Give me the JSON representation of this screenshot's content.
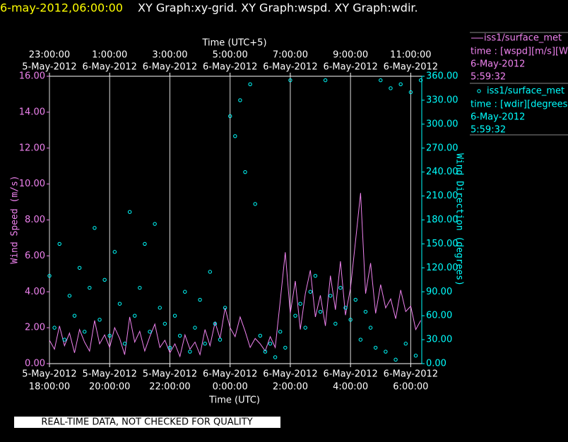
{
  "chart_data": {
    "type": "line",
    "title_date": "6-may-2012,06:00:00",
    "title": "XY Graph:xy-grid.  XY Graph:wspd.  XY Graph:wdir.",
    "x_label": "Time (UTC)",
    "x2_label": "Time (UTC+5)",
    "y_label": "Wind Speed (m/s)",
    "y2_label": "Wind Direction (degrees)",
    "notice": "REAL-TIME DATA, NOT CHECKED FOR QUALITY",
    "grid": true,
    "xlim": [
      "2012-05-05T18:00",
      "2012-05-06T06:22"
    ],
    "xticks": [
      {
        "value": "2012-05-05T18:00",
        "label": [
          "5-May-2012",
          "18:00:00"
        ]
      },
      {
        "value": "2012-05-05T20:00",
        "label": [
          "5-May-2012",
          "20:00:00"
        ]
      },
      {
        "value": "2012-05-05T22:00",
        "label": [
          "5-May-2012",
          "22:00:00"
        ]
      },
      {
        "value": "2012-05-06T00:00",
        "label": [
          "6-May-2012",
          "0:00:00"
        ]
      },
      {
        "value": "2012-05-06T02:00",
        "label": [
          "6-May-2012",
          "2:00:00"
        ]
      },
      {
        "value": "2012-05-06T04:00",
        "label": [
          "6-May-2012",
          "4:00:00"
        ]
      },
      {
        "value": "2012-05-06T06:00",
        "label": [
          "6-May-2012",
          "6:00:00"
        ]
      }
    ],
    "x2lim": [
      "2012-05-05T23:00",
      "2012-05-06T11:22"
    ],
    "x2ticks": [
      {
        "value": "2012-05-05T23:00",
        "label": [
          "23:00:00",
          "5-May-2012"
        ]
      },
      {
        "value": "2012-05-06T01:00",
        "label": [
          "1:00:00",
          "6-May-2012"
        ]
      },
      {
        "value": "2012-05-06T03:00",
        "label": [
          "3:00:00",
          "6-May-2012"
        ]
      },
      {
        "value": "2012-05-06T05:00",
        "label": [
          "5:00:00",
          "6-May-2012"
        ]
      },
      {
        "value": "2012-05-06T07:00",
        "label": [
          "7:00:00",
          "6-May-2012"
        ]
      },
      {
        "value": "2012-05-06T09:00",
        "label": [
          "9:00:00",
          "6-May-2012"
        ]
      },
      {
        "value": "2012-05-06T11:00",
        "label": [
          "11:00:00",
          "6-May-2012"
        ]
      }
    ],
    "ylim": [
      0,
      16
    ],
    "yticks": [
      {
        "value": 0,
        "label": "0.00"
      },
      {
        "value": 2,
        "label": "2.00"
      },
      {
        "value": 4,
        "label": "4.00"
      },
      {
        "value": 6,
        "label": "6.00"
      },
      {
        "value": 8,
        "label": "8.00"
      },
      {
        "value": 10,
        "label": "10.00"
      },
      {
        "value": 12,
        "label": "12.00"
      },
      {
        "value": 14,
        "label": "14.00"
      },
      {
        "value": 16,
        "label": "16.00"
      }
    ],
    "y2lim": [
      0,
      360
    ],
    "y2ticks": [
      {
        "value": 0,
        "label": "0.00"
      },
      {
        "value": 30,
        "label": "30.00"
      },
      {
        "value": 60,
        "label": "60.00"
      },
      {
        "value": 90,
        "label": "90.00"
      },
      {
        "value": 120,
        "label": "120.00"
      },
      {
        "value": 150,
        "label": "150.00"
      },
      {
        "value": 180,
        "label": "180.00"
      },
      {
        "value": 210,
        "label": "210.00"
      },
      {
        "value": 240,
        "label": "240.00"
      },
      {
        "value": 270,
        "label": "270.00"
      },
      {
        "value": 300,
        "label": "300.00"
      },
      {
        "value": 330,
        "label": "330.00"
      },
      {
        "value": 360,
        "label": "360.00"
      }
    ],
    "x": [
      "2012-05-05T18:00",
      "2012-05-05T18:10",
      "2012-05-05T18:20",
      "2012-05-05T18:30",
      "2012-05-05T18:40",
      "2012-05-05T18:50",
      "2012-05-05T19:00",
      "2012-05-05T19:10",
      "2012-05-05T19:20",
      "2012-05-05T19:30",
      "2012-05-05T19:40",
      "2012-05-05T19:50",
      "2012-05-05T20:00",
      "2012-05-05T20:10",
      "2012-05-05T20:20",
      "2012-05-05T20:30",
      "2012-05-05T20:40",
      "2012-05-05T20:50",
      "2012-05-05T21:00",
      "2012-05-05T21:10",
      "2012-05-05T21:20",
      "2012-05-05T21:30",
      "2012-05-05T21:40",
      "2012-05-05T21:50",
      "2012-05-05T22:00",
      "2012-05-05T22:10",
      "2012-05-05T22:20",
      "2012-05-05T22:30",
      "2012-05-05T22:40",
      "2012-05-05T22:50",
      "2012-05-05T23:00",
      "2012-05-05T23:10",
      "2012-05-05T23:20",
      "2012-05-05T23:30",
      "2012-05-05T23:40",
      "2012-05-05T23:50",
      "2012-05-06T00:00",
      "2012-05-06T00:10",
      "2012-05-06T00:20",
      "2012-05-06T00:30",
      "2012-05-06T00:40",
      "2012-05-06T00:50",
      "2012-05-06T01:00",
      "2012-05-06T01:10",
      "2012-05-06T01:20",
      "2012-05-06T01:30",
      "2012-05-06T01:40",
      "2012-05-06T01:50",
      "2012-05-06T02:00",
      "2012-05-06T02:10",
      "2012-05-06T02:20",
      "2012-05-06T02:30",
      "2012-05-06T02:40",
      "2012-05-06T02:50",
      "2012-05-06T03:00",
      "2012-05-06T03:10",
      "2012-05-06T03:20",
      "2012-05-06T03:30",
      "2012-05-06T03:40",
      "2012-05-06T03:50",
      "2012-05-06T04:00",
      "2012-05-06T04:10",
      "2012-05-06T04:20",
      "2012-05-06T04:30",
      "2012-05-06T04:40",
      "2012-05-06T04:50",
      "2012-05-06T05:00",
      "2012-05-06T05:10",
      "2012-05-06T05:20",
      "2012-05-06T05:30",
      "2012-05-06T05:40",
      "2012-05-06T05:50",
      "2012-05-06T06:00",
      "2012-05-06T06:10",
      "2012-05-06T06:20"
    ],
    "series": [
      {
        "name": "iss1/surface_met",
        "type": "line",
        "color": "#ee82ee",
        "legend_text": [
          "time : [wspd][m/s][Wind",
          "6-May-2012",
          "5:59:32"
        ],
        "values": [
          1.3,
          0.8,
          2.1,
          1.0,
          1.7,
          0.6,
          1.9,
          1.2,
          0.7,
          2.4,
          1.1,
          1.6,
          0.9,
          2.0,
          1.4,
          0.5,
          2.6,
          1.2,
          1.8,
          0.7,
          1.5,
          2.2,
          0.9,
          1.3,
          0.6,
          1.1,
          0.4,
          1.6,
          0.8,
          1.2,
          0.5,
          1.9,
          1.0,
          2.3,
          1.4,
          3.1,
          2.0,
          1.5,
          2.6,
          1.8,
          0.9,
          1.4,
          1.1,
          0.7,
          1.5,
          0.9,
          3.5,
          6.2,
          2.8,
          4.6,
          1.9,
          3.9,
          5.2,
          2.6,
          3.8,
          2.1,
          4.9,
          3.0,
          5.7,
          2.7,
          4.2,
          6.8,
          9.5,
          3.9,
          5.6,
          2.8,
          4.4,
          3.1,
          3.6,
          2.5,
          4.1,
          2.9,
          3.2,
          1.9,
          2.4
        ]
      },
      {
        "name": "iss1/surface_met",
        "type": "scatter",
        "axis": "y2",
        "color": "#00ffff",
        "legend_text": [
          "time : [wdir][degrees][V",
          "6-May-2012",
          "5:59:32"
        ],
        "values": [
          110,
          45,
          150,
          30,
          85,
          60,
          120,
          40,
          95,
          170,
          55,
          105,
          35,
          140,
          75,
          25,
          190,
          60,
          95,
          150,
          40,
          175,
          70,
          50,
          20,
          60,
          35,
          90,
          15,
          45,
          80,
          25,
          115,
          50,
          30,
          70,
          310,
          285,
          330,
          240,
          350,
          200,
          35,
          15,
          25,
          8,
          40,
          20,
          355,
          60,
          75,
          45,
          90,
          110,
          65,
          355,
          85,
          50,
          95,
          70,
          55,
          80,
          30,
          65,
          45,
          20,
          355,
          15,
          345,
          5,
          350,
          25,
          340,
          10,
          355
        ]
      }
    ]
  }
}
